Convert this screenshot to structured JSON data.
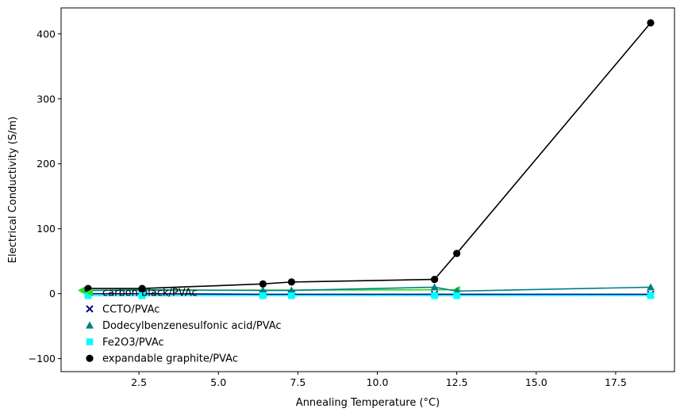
{
  "chart_data": {
    "type": "line",
    "xlabel": "Annealing Temperature (°C)",
    "ylabel": "Electrical Conductivity (S/m)",
    "xlim": [
      0.05,
      19.35
    ],
    "ylim": [
      -120,
      440
    ],
    "xticks": [
      2.5,
      5.0,
      7.5,
      10.0,
      12.5,
      15.0,
      17.5
    ],
    "xtick_labels": [
      "2.5",
      "5.0",
      "7.5",
      "10.0",
      "12.5",
      "15.0",
      "17.5"
    ],
    "yticks": [
      -100,
      0,
      100,
      200,
      300,
      400
    ],
    "ytick_labels": [
      "−100",
      "0",
      "100",
      "200",
      "300",
      "400"
    ],
    "grid": false,
    "legend_position": "left",
    "series": [
      {
        "name": "carbon black/PVAc",
        "marker": "triangle-left",
        "color": "#22dd22",
        "x": [
          0.7,
          12.5
        ],
        "y": [
          5,
          6
        ]
      },
      {
        "name": "CCTO/PVAc",
        "marker": "x",
        "color": "#000080",
        "x": [
          0.9,
          2.6,
          6.4,
          7.3,
          11.8,
          18.6
        ],
        "y": [
          0,
          0,
          -1,
          -1,
          -1,
          -1
        ]
      },
      {
        "name": "Dodecylbenzenesulfonic acid/PVAc",
        "marker": "triangle-up",
        "color": "#008080",
        "x": [
          0.9,
          2.6,
          6.4,
          7.3,
          11.8,
          12.5,
          18.6
        ],
        "y": [
          5,
          6,
          5,
          5,
          10,
          4,
          10
        ]
      },
      {
        "name": "Fe2O3/PVAc",
        "marker": "square",
        "color": "#00ffff",
        "x": [
          0.9,
          2.6,
          6.4,
          7.3,
          11.8,
          12.5,
          18.6
        ],
        "y": [
          -3,
          -3,
          -3,
          -3,
          -3,
          -3,
          -3
        ]
      },
      {
        "name": "expandable graphite/PVAc",
        "marker": "circle",
        "color": "#000000",
        "x": [
          0.9,
          2.6,
          6.4,
          7.3,
          11.8,
          12.5,
          18.6
        ],
        "y": [
          8,
          8,
          15,
          18,
          22,
          62,
          417
        ]
      }
    ]
  }
}
